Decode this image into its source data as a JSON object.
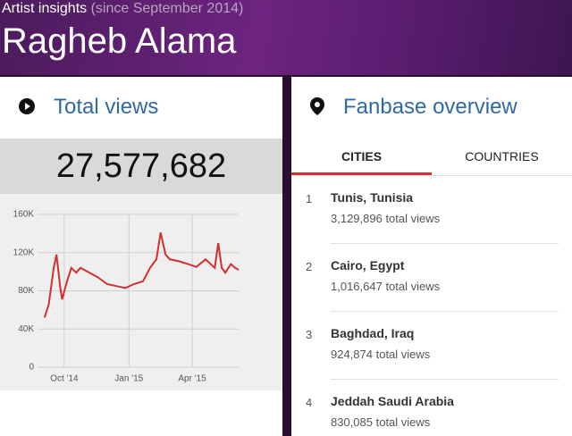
{
  "header": {
    "kicker": "Artist insights",
    "since": "(since September 2014)",
    "title": "Ragheb Alama"
  },
  "total_views": {
    "title": "Total views",
    "total": "27,577,682",
    "chart": {
      "type": "line",
      "color": "#d32f2f",
      "grid": true,
      "x": [
        -28,
        -22,
        -15,
        -11,
        -6,
        -3,
        4,
        10,
        17,
        23,
        36,
        48,
        61,
        74,
        87,
        99,
        112,
        122,
        131,
        137,
        144,
        150,
        163,
        176,
        188,
        201,
        214,
        219,
        224,
        229,
        237,
        243,
        248
      ],
      "values": [
        52000,
        66000,
        104000,
        118000,
        85000,
        71000,
        90000,
        104000,
        99000,
        104000,
        99000,
        94000,
        87000,
        85000,
        83000,
        87000,
        90000,
        104000,
        113000,
        141000,
        118000,
        113000,
        111000,
        108000,
        105000,
        113000,
        104000,
        130000,
        104000,
        99000,
        108000,
        104000,
        102000
      ],
      "xlim": [
        -38,
        248
      ],
      "xticks": [
        {
          "value": 0,
          "label": "Oct '14"
        },
        {
          "value": 92,
          "label": "Jan '15"
        },
        {
          "value": 182,
          "label": "Apr '15"
        }
      ],
      "ylim": [
        0,
        160000
      ],
      "yticks": [
        0,
        {
          "value": 40000,
          "label": "40K"
        },
        {
          "value": 80000,
          "label": "80K"
        },
        {
          "value": 120000,
          "label": "120K"
        },
        {
          "value": 160000,
          "label": "160K"
        }
      ]
    }
  },
  "fanbase": {
    "title": "Fanbase overview",
    "tabs": [
      "CITIES",
      "COUNTRIES"
    ],
    "items": [
      {
        "rank": "1",
        "name": "Tunis, Tunisia",
        "views": "3,129,896 total views"
      },
      {
        "rank": "2",
        "name": "Cairo, Egypt",
        "views": "1,016,647 total views"
      },
      {
        "rank": "3",
        "name": "Baghdad, Iraq",
        "views": "924,874 total views"
      },
      {
        "rank": "4",
        "name": "Jeddah Saudi Arabia",
        "views": "830,085 total views"
      }
    ]
  }
}
